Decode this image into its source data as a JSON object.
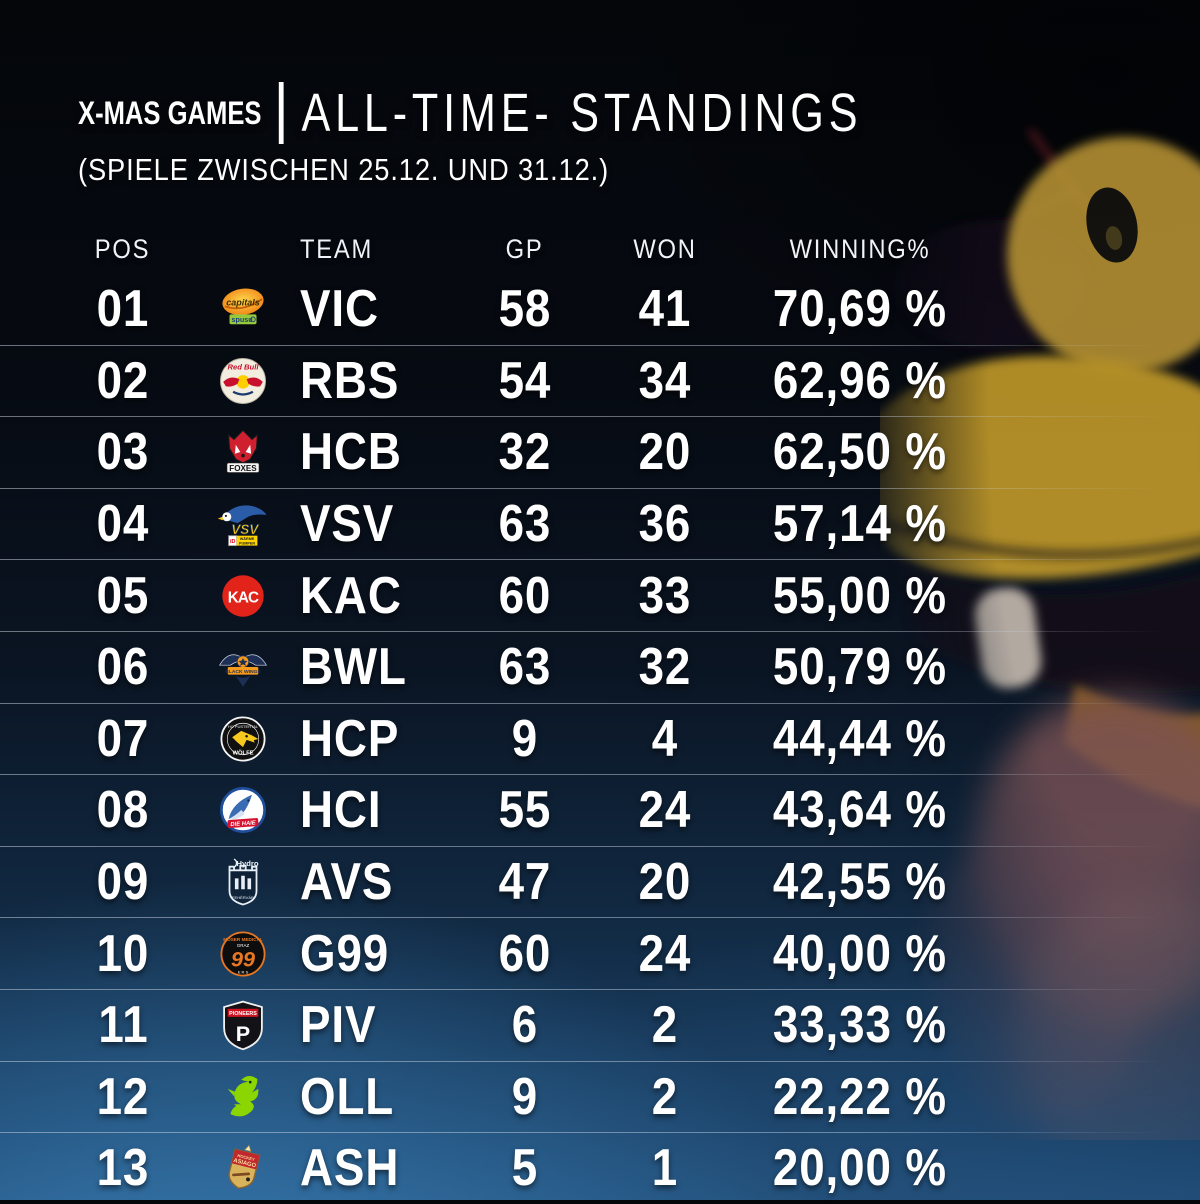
{
  "poster": {
    "title_main": "X-MAS GAMES",
    "title_separator": "|",
    "title_secondary": "ALL-TIME- STANDINGS",
    "subtitle": "(SPIELE ZWISCHEN 25.12. UND 31.12.)"
  },
  "table": {
    "columns": {
      "pos": "POS",
      "team": "TEAM",
      "gp": "GP",
      "won": "WON",
      "pct": "WINNING%"
    },
    "rows": [
      {
        "pos": "01",
        "logo": "vienna-capitals-logo",
        "team": "VIC",
        "gp": "58",
        "won": "41",
        "pct": "70,69 %"
      },
      {
        "pos": "02",
        "logo": "red-bull-salzburg-logo",
        "team": "RBS",
        "gp": "54",
        "won": "34",
        "pct": "62,96 %"
      },
      {
        "pos": "03",
        "logo": "hcb-foxes-logo",
        "team": "HCB",
        "gp": "32",
        "won": "20",
        "pct": "62,50 %"
      },
      {
        "pos": "04",
        "logo": "vsv-logo",
        "team": "VSV",
        "gp": "63",
        "won": "36",
        "pct": "57,14 %"
      },
      {
        "pos": "05",
        "logo": "kac-logo",
        "team": "KAC",
        "gp": "60",
        "won": "33",
        "pct": "55,00 %"
      },
      {
        "pos": "06",
        "logo": "black-wings-linz-logo",
        "team": "BWL",
        "gp": "63",
        "won": "32",
        "pct": "50,79 %"
      },
      {
        "pos": "07",
        "logo": "hc-pustertal-logo",
        "team": "HCP",
        "gp": "9",
        "won": "4",
        "pct": "44,44 %"
      },
      {
        "pos": "08",
        "logo": "hc-innsbruck-logo",
        "team": "HCI",
        "gp": "55",
        "won": "24",
        "pct": "43,64 %"
      },
      {
        "pos": "09",
        "logo": "fehervar-av19-logo",
        "team": "AVS",
        "gp": "47",
        "won": "20",
        "pct": "42,55 %"
      },
      {
        "pos": "10",
        "logo": "graz-99ers-logo",
        "team": "G99",
        "gp": "60",
        "won": "24",
        "pct": "40,00 %"
      },
      {
        "pos": "11",
        "logo": "pioneers-vorarlberg-logo",
        "team": "PIV",
        "gp": "6",
        "won": "2",
        "pct": "33,33 %"
      },
      {
        "pos": "12",
        "logo": "olimpija-ljubljana-logo",
        "team": "OLL",
        "gp": "9",
        "won": "2",
        "pct": "22,22 %"
      },
      {
        "pos": "13",
        "logo": "asiago-hockey-logo",
        "team": "ASH",
        "gp": "5",
        "won": "1",
        "pct": "20,00 %"
      }
    ]
  },
  "chart_data": {
    "type": "table",
    "title": "X-MAS GAMES | ALL-TIME- STANDINGS",
    "subtitle": "(SPIELE ZWISCHEN 25.12. UND 31.12.)",
    "columns": [
      "POS",
      "TEAM",
      "GP",
      "WON",
      "WINNING%"
    ],
    "rows": [
      [
        "01",
        "VIC",
        58,
        41,
        "70,69 %"
      ],
      [
        "02",
        "RBS",
        54,
        34,
        "62,96 %"
      ],
      [
        "03",
        "HCB",
        32,
        20,
        "62,50 %"
      ],
      [
        "04",
        "VSV",
        63,
        36,
        "57,14 %"
      ],
      [
        "05",
        "KAC",
        60,
        33,
        "55,00 %"
      ],
      [
        "06",
        "BWL",
        63,
        32,
        "50,79 %"
      ],
      [
        "07",
        "HCP",
        9,
        4,
        "44,44 %"
      ],
      [
        "08",
        "HCI",
        55,
        24,
        "43,64 %"
      ],
      [
        "09",
        "AVS",
        47,
        20,
        "42,55 %"
      ],
      [
        "10",
        "G99",
        60,
        24,
        "40,00 %"
      ],
      [
        "11",
        "PIV",
        6,
        2,
        "33,33 %"
      ],
      [
        "12",
        "OLL",
        9,
        2,
        "22,22 %"
      ],
      [
        "13",
        "ASH",
        5,
        1,
        "20,00 %"
      ]
    ]
  },
  "colors": {
    "background_top": "#04060a",
    "background_bottom_glow": "#3a7eb4",
    "text": "#ffffff",
    "separator": "rgba(205,215,230,0.45)",
    "mascot_yellow": "#e5b52f"
  }
}
